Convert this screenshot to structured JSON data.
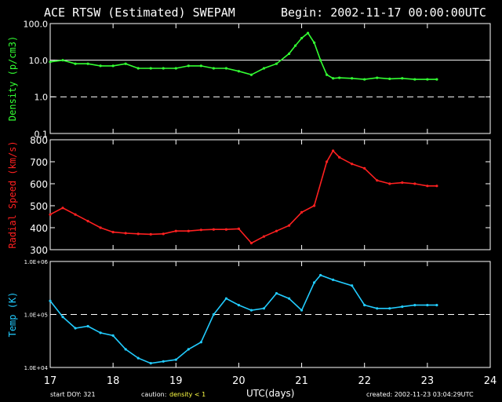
{
  "header": {
    "title": "ACE RTSW (Estimated) SWEPAM",
    "begin": "Begin: 2002-11-17 00:00:00UTC"
  },
  "footer": {
    "start_doy": "start DOY: 321",
    "caution_label": "caution:",
    "caution_text": "density < 1",
    "created": "created: 2002-11-23 03:04:29UTC"
  },
  "colors": {
    "density": "#33ff33",
    "speed": "#ff2020",
    "temp": "#22ccff",
    "axes": "#ffffff"
  },
  "chart_data": [
    {
      "type": "line",
      "ylabel": "Density (p/cm3)",
      "yscale": "log",
      "ylim": [
        0.1,
        100
      ],
      "yticks": [
        "100.0",
        "10.0",
        "1.0",
        "0.1"
      ],
      "reference_lines": [
        {
          "y": 10,
          "style": "solid"
        },
        {
          "y": 1,
          "style": "dashed"
        }
      ],
      "series": [
        {
          "x": [
            17.0,
            17.2,
            17.4,
            17.6,
            17.8,
            18.0,
            18.2,
            18.4,
            18.6,
            18.8,
            19.0,
            19.2,
            19.4,
            19.6,
            19.8,
            20.0,
            20.2,
            20.4,
            20.6,
            20.8,
            20.9,
            21.0,
            21.1,
            21.2,
            21.3,
            21.4,
            21.5,
            21.6,
            21.8,
            22.0,
            22.2,
            22.4,
            22.6,
            22.8,
            23.0,
            23.15
          ],
          "values": [
            9,
            10,
            8,
            8,
            7,
            7,
            8,
            6,
            6,
            6,
            6,
            7,
            7,
            6,
            6,
            5,
            4,
            6,
            8,
            15,
            25,
            40,
            55,
            30,
            10,
            4,
            3.2,
            3.3,
            3.2,
            3.0,
            3.3,
            3.1,
            3.2,
            3.0,
            3.0,
            3.0
          ]
        }
      ]
    },
    {
      "type": "line",
      "ylabel": "Radial Speed (km/s)",
      "ylim": [
        300,
        800
      ],
      "yticks": [
        "800",
        "700",
        "600",
        "500",
        "400",
        "300"
      ],
      "series": [
        {
          "x": [
            17.0,
            17.2,
            17.4,
            17.6,
            17.8,
            18.0,
            18.2,
            18.4,
            18.6,
            18.8,
            19.0,
            19.2,
            19.4,
            19.6,
            19.8,
            20.0,
            20.2,
            20.4,
            20.6,
            20.8,
            21.0,
            21.2,
            21.4,
            21.5,
            21.6,
            21.8,
            22.0,
            22.2,
            22.4,
            22.6,
            22.8,
            23.0,
            23.15
          ],
          "values": [
            460,
            490,
            460,
            430,
            400,
            380,
            375,
            372,
            370,
            372,
            385,
            385,
            390,
            392,
            392,
            395,
            330,
            360,
            385,
            410,
            470,
            500,
            700,
            750,
            720,
            690,
            670,
            615,
            600,
            605,
            600,
            590,
            590
          ]
        }
      ]
    },
    {
      "type": "line",
      "ylabel": "Temp (K)",
      "yscale": "log",
      "ylim": [
        10000,
        1000000
      ],
      "yticks": [
        "1.0E+06",
        "1.0E+05",
        "1.0E+04"
      ],
      "reference_lines": [
        {
          "y": 100000,
          "style": "dashed"
        }
      ],
      "series": [
        {
          "x": [
            17.0,
            17.2,
            17.4,
            17.6,
            17.8,
            18.0,
            18.2,
            18.4,
            18.6,
            18.8,
            19.0,
            19.2,
            19.4,
            19.6,
            19.8,
            20.0,
            20.2,
            20.4,
            20.6,
            20.8,
            21.0,
            21.2,
            21.3,
            21.5,
            21.8,
            22.0,
            22.2,
            22.4,
            22.6,
            22.8,
            23.0,
            23.15
          ],
          "values": [
            180000,
            90000,
            55000,
            60000,
            45000,
            40000,
            22000,
            15000,
            12000,
            13000,
            14000,
            22000,
            30000,
            100000,
            200000,
            150000,
            120000,
            130000,
            250000,
            200000,
            120000,
            400000,
            550000,
            450000,
            350000,
            150000,
            130000,
            130000,
            140000,
            150000,
            150000,
            150000
          ]
        }
      ]
    }
  ],
  "x_axis": {
    "label": "UTC(days)",
    "ticks": [
      "17",
      "18",
      "19",
      "20",
      "21",
      "22",
      "23",
      "24"
    ],
    "range": [
      17,
      24
    ]
  }
}
